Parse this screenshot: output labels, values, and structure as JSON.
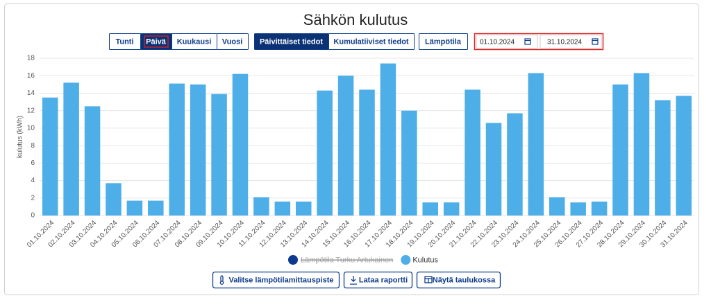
{
  "header": {
    "title": "Sähkön kulutus"
  },
  "period_tabs": [
    {
      "label": "Tunti"
    },
    {
      "label": "Päivä",
      "active": true,
      "focused": true
    },
    {
      "label": "Kuukausi"
    },
    {
      "label": "Vuosi"
    }
  ],
  "mode_tabs": [
    {
      "label": "Päivittäiset tiedot",
      "active": true
    },
    {
      "label": "Kumulatiiviset tiedot"
    }
  ],
  "temperature_button": {
    "label": "Lämpötila"
  },
  "date_range": {
    "start": "01.10.2024",
    "end": "31.10.2024"
  },
  "actions": [
    {
      "label": "Valitse lämpötilamittauspiste"
    },
    {
      "label": "Lataa raportti"
    },
    {
      "label": "Näytä taulukossa"
    }
  ],
  "chart_data": {
    "type": "bar",
    "ylabel": "kulutus (kWh)",
    "categories": [
      "01.10.2024",
      "02.10.2024",
      "03.10.2024",
      "04.10.2024",
      "05.10.2024",
      "06.10.2024",
      "07.10.2024",
      "08.10.2024",
      "09.10.2024",
      "10.10.2024",
      "11.10.2024",
      "12.10.2024",
      "13.10.2024",
      "14.10.2024",
      "15.10.2024",
      "16.10.2024",
      "17.10.2024",
      "18.10.2024",
      "19.10.2024",
      "20.10.2024",
      "21.10.2024",
      "22.10.2024",
      "23.10.2024",
      "24.10.2024",
      "25.10.2024",
      "26.10.2024",
      "27.10.2024",
      "28.10.2024",
      "29.10.2024",
      "30.10.2024",
      "31.10.2024"
    ],
    "series": [
      {
        "name": "Kulutus",
        "color": "#4daee8",
        "values": [
          13.5,
          15.2,
          12.5,
          3.7,
          1.7,
          1.7,
          15.1,
          15.0,
          13.9,
          16.2,
          2.1,
          1.6,
          1.6,
          14.3,
          16.0,
          14.4,
          17.4,
          12.0,
          1.5,
          1.5,
          14.4,
          10.6,
          11.7,
          16.3,
          2.1,
          1.5,
          1.6,
          15.0,
          16.3,
          13.2,
          13.7
        ]
      }
    ],
    "hidden_series": [
      {
        "name": "Lämpötila Turku Artukainen",
        "color": "#0b3a8f"
      }
    ],
    "ylim": [
      0,
      18
    ],
    "yticks": [
      0,
      2,
      4,
      6,
      8,
      10,
      12,
      14,
      16,
      18
    ],
    "grid": true
  }
}
